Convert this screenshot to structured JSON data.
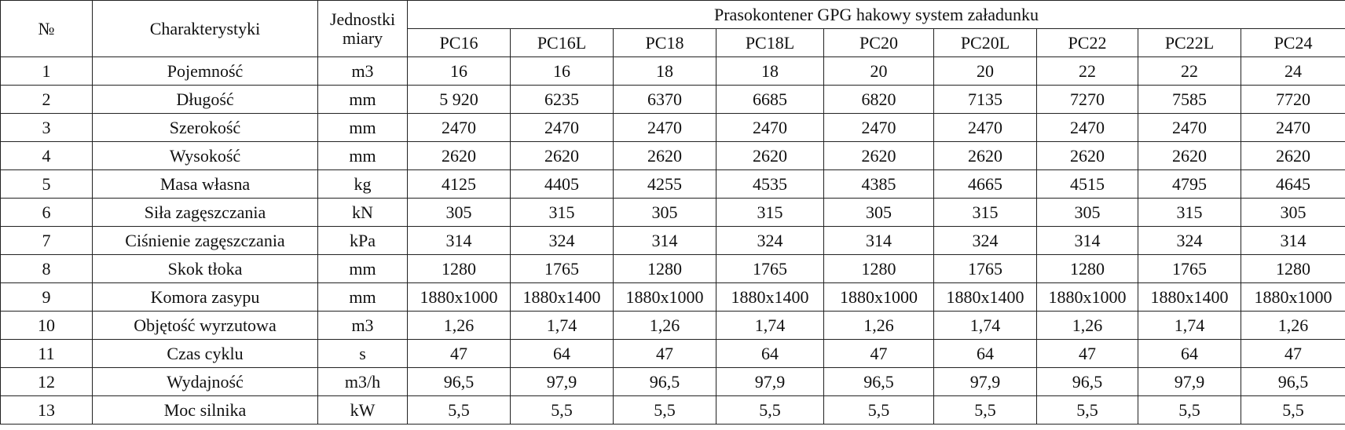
{
  "table": {
    "header": {
      "number": "№",
      "characteristics": "Charakterystyki",
      "unit": "Jednostki miary",
      "group": "Prasokontener GPG hakowy system załadunku",
      "models": [
        "PC16",
        "PC16L",
        "PC18",
        "PC18L",
        "PC20",
        "PC20L",
        "PC22",
        "PC22L",
        "PC24"
      ]
    },
    "rows": [
      [
        "1",
        "Pojemność",
        "m3",
        "16",
        "16",
        "18",
        "18",
        "20",
        "20",
        "22",
        "22",
        "24"
      ],
      [
        "2",
        "Długość",
        "mm",
        "5 920",
        "6235",
        "6370",
        "6685",
        "6820",
        "7135",
        "7270",
        "7585",
        "7720"
      ],
      [
        "3",
        "Szerokość",
        "mm",
        "2470",
        "2470",
        "2470",
        "2470",
        "2470",
        "2470",
        "2470",
        "2470",
        "2470"
      ],
      [
        "4",
        "Wysokość",
        "mm",
        "2620",
        "2620",
        "2620",
        "2620",
        "2620",
        "2620",
        "2620",
        "2620",
        "2620"
      ],
      [
        "5",
        "Masa własna",
        "kg",
        "4125",
        "4405",
        "4255",
        "4535",
        "4385",
        "4665",
        "4515",
        "4795",
        "4645"
      ],
      [
        "6",
        "Siła zagęszczania",
        "kN",
        "305",
        "315",
        "305",
        "315",
        "305",
        "315",
        "305",
        "315",
        "305"
      ],
      [
        "7",
        "Ciśnienie zagęszczania",
        "kPa",
        "314",
        "324",
        "314",
        "324",
        "314",
        "324",
        "314",
        "324",
        "314"
      ],
      [
        "8",
        "Skok tłoka",
        "mm",
        "1280",
        "1765",
        "1280",
        "1765",
        "1280",
        "1765",
        "1280",
        "1765",
        "1280"
      ],
      [
        "9",
        "Komora zasypu",
        "mm",
        "1880x1000",
        "1880x1400",
        "1880x1000",
        "1880x1400",
        "1880x1000",
        "1880x1400",
        "1880x1000",
        "1880x1400",
        "1880x1000"
      ],
      [
        "10",
        "Objętość wyrzutowa",
        "m3",
        "1,26",
        "1,74",
        "1,26",
        "1,74",
        "1,26",
        "1,74",
        "1,26",
        "1,74",
        "1,26"
      ],
      [
        "11",
        "Czas cyklu",
        "s",
        "47",
        "64",
        "47",
        "64",
        "47",
        "64",
        "47",
        "64",
        "47"
      ],
      [
        "12",
        "Wydajność",
        "m3/h",
        "96,5",
        "97,9",
        "96,5",
        "97,9",
        "96,5",
        "97,9",
        "96,5",
        "97,9",
        "96,5"
      ],
      [
        "13",
        "Moc silnika",
        "kW",
        "5,5",
        "5,5",
        "5,5",
        "5,5",
        "5,5",
        "5,5",
        "5,5",
        "5,5",
        "5,5"
      ]
    ]
  }
}
